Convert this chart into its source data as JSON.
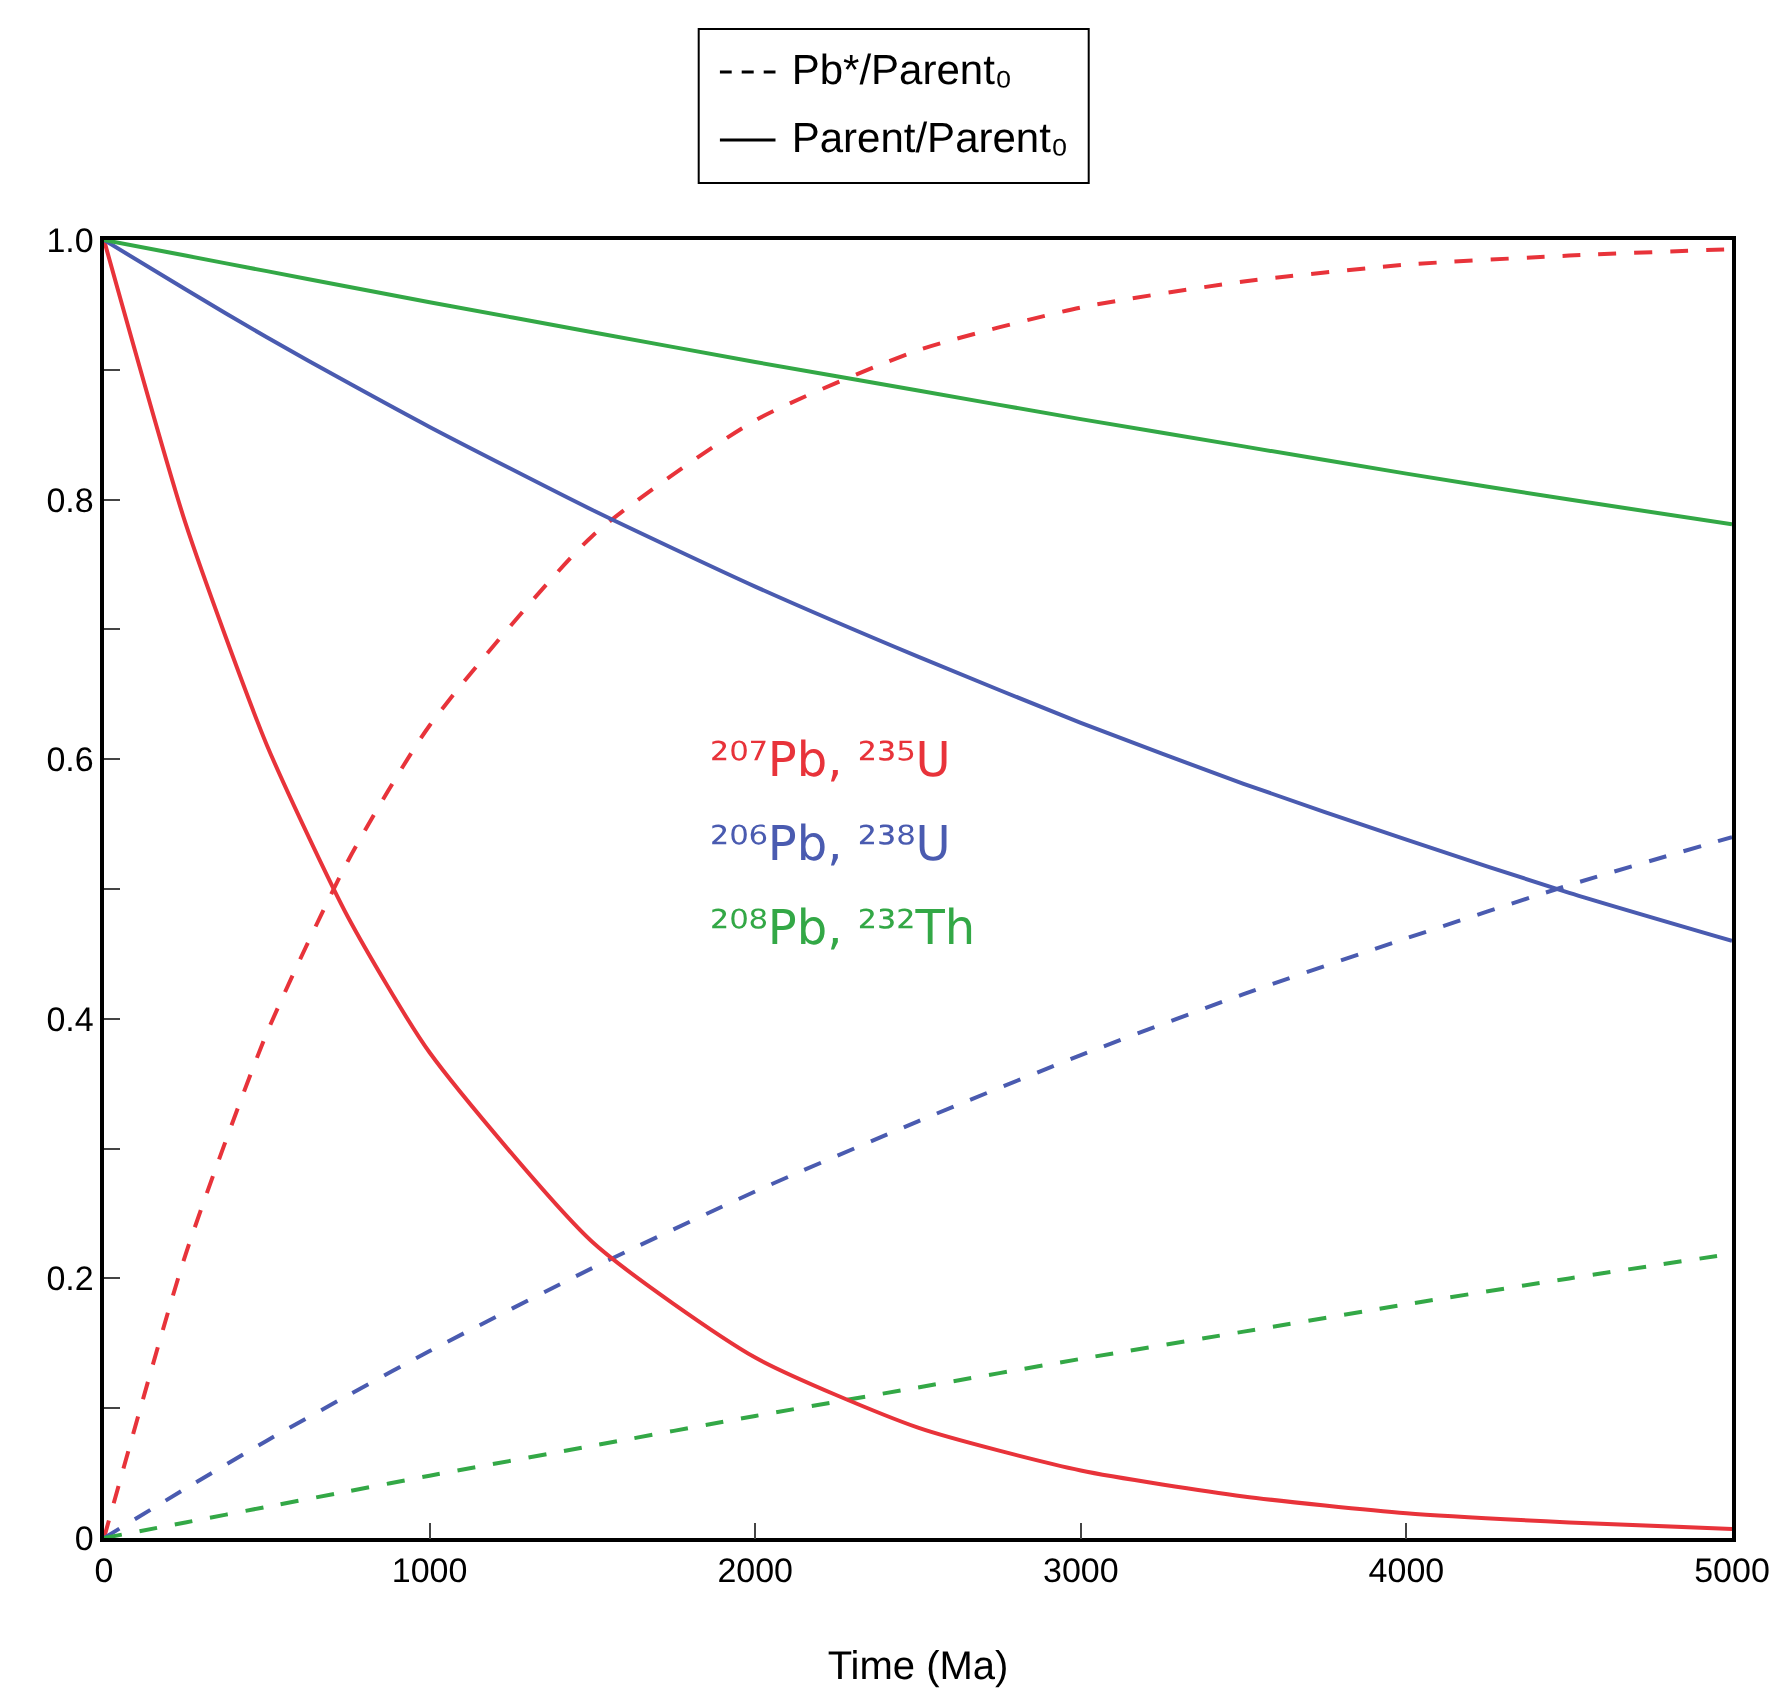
{
  "chart_data": {
    "type": "line",
    "xlabel": "Time (Ma)",
    "x": [
      0,
      250,
      500,
      750,
      1000,
      1500,
      2000,
      2500,
      3000,
      3500,
      4000,
      4500,
      5000
    ],
    "series": [
      {
        "color": "#e8333a",
        "line_style": "dashed",
        "values": [
          0,
          0.218,
          0.389,
          0.522,
          0.626,
          0.772,
          0.861,
          0.915,
          0.948,
          0.968,
          0.981,
          0.988,
          0.993
        ]
      },
      {
        "color": "#4a5bb0",
        "line_style": "dashed",
        "values": [
          0,
          0.038,
          0.075,
          0.11,
          0.144,
          0.208,
          0.267,
          0.321,
          0.372,
          0.419,
          0.462,
          0.503,
          0.54
        ]
      },
      {
        "color": "#33a846",
        "line_style": "dashed",
        "values": [
          0,
          0.012,
          0.024,
          0.036,
          0.048,
          0.071,
          0.094,
          0.116,
          0.138,
          0.159,
          0.18,
          0.2,
          0.219
        ]
      },
      {
        "color": "#e8333a",
        "line_style": "solid",
        "values": [
          1,
          0.782,
          0.611,
          0.478,
          0.374,
          0.228,
          0.139,
          0.085,
          0.052,
          0.032,
          0.019,
          0.012,
          0.007
        ]
      },
      {
        "color": "#4a5bb0",
        "line_style": "solid",
        "values": [
          1,
          0.962,
          0.925,
          0.89,
          0.856,
          0.792,
          0.733,
          0.679,
          0.628,
          0.581,
          0.538,
          0.497,
          0.46
        ]
      },
      {
        "color": "#33a846",
        "line_style": "solid",
        "values": [
          1,
          0.988,
          0.976,
          0.964,
          0.952,
          0.929,
          0.906,
          0.884,
          0.862,
          0.841,
          0.82,
          0.8,
          0.781
        ]
      }
    ],
    "annotations": [
      "Pb*/Parent₀",
      "Parent/Parent₀",
      "²⁰⁷Pb, ²³⁵U",
      "²⁰⁶Pb, ²³⁸U",
      "²⁰⁸Pb, ²³²Th"
    ],
    "grid": false,
    "marker": "none",
    "xlim": [
      0,
      5000
    ],
    "xticks": [
      0,
      1000,
      2000,
      3000,
      4000,
      5000
    ],
    "ylim": [
      0,
      1
    ],
    "yticks": [
      0,
      {
        "value": 0.1,
        "label": null
      },
      {
        "value": 0.2,
        "label": "0.2"
      },
      {
        "value": 0.3,
        "label": null
      },
      {
        "value": 0.4,
        "label": "0.4"
      },
      {
        "value": 0.5,
        "label": null
      },
      {
        "value": 0.6,
        "label": "0.6"
      },
      {
        "value": 0.7,
        "label": null
      },
      {
        "value": 0.8,
        "label": "0.8"
      },
      {
        "value": 0.9,
        "label": null
      },
      {
        "value": 1,
        "label": "1.0"
      }
    ]
  }
}
